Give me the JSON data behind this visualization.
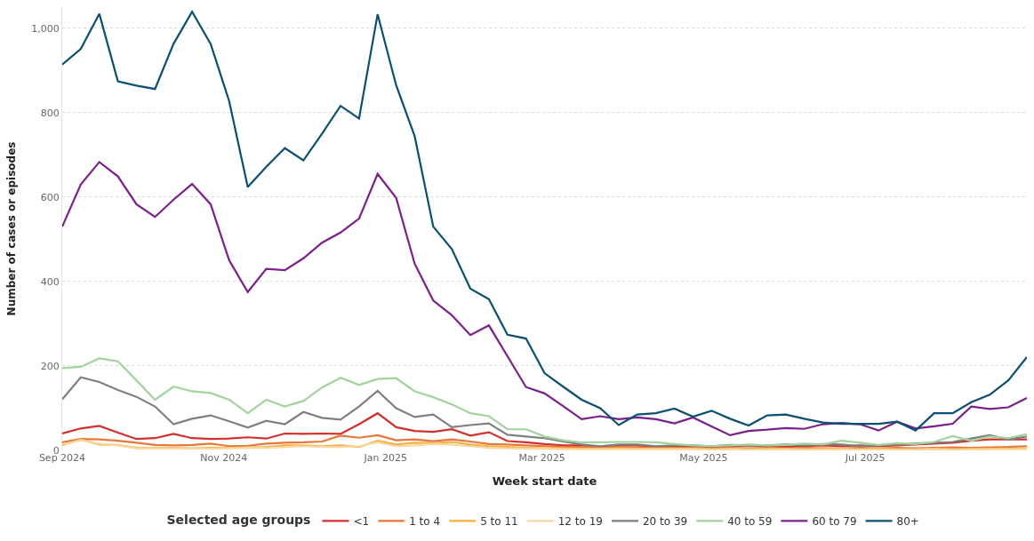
{
  "chart_data": {
    "type": "line",
    "xlabel": "Week start date",
    "ylabel": "Number of cases or episodes",
    "legend_title": "Selected age groups",
    "x": [
      "2024-09-01",
      "2024-09-08",
      "2024-09-15",
      "2024-09-22",
      "2024-09-29",
      "2024-10-06",
      "2024-10-13",
      "2024-10-20",
      "2024-10-27",
      "2024-11-03",
      "2024-11-10",
      "2024-11-17",
      "2024-11-24",
      "2024-12-01",
      "2024-12-08",
      "2024-12-15",
      "2024-12-22",
      "2024-12-29",
      "2025-01-05",
      "2025-01-12",
      "2025-01-19",
      "2025-01-26",
      "2025-02-02",
      "2025-02-09",
      "2025-02-16",
      "2025-02-23",
      "2025-03-02",
      "2025-03-09",
      "2025-03-16",
      "2025-03-23",
      "2025-03-30",
      "2025-04-06",
      "2025-04-13",
      "2025-04-20",
      "2025-04-27",
      "2025-05-04",
      "2025-05-11",
      "2025-05-18",
      "2025-05-25",
      "2025-06-01",
      "2025-06-08",
      "2025-06-15",
      "2025-06-22",
      "2025-06-29",
      "2025-07-06",
      "2025-07-13",
      "2025-07-20",
      "2025-07-27",
      "2025-08-03",
      "2025-08-10",
      "2025-08-17",
      "2025-08-24",
      "2025-08-31"
    ],
    "xlim": [
      "2024-09-01",
      "2025-08-31"
    ],
    "xticks": [
      {
        "value": "2024-09-01",
        "label": "Sep 2024"
      },
      {
        "value": "2024-11-01",
        "label": "Nov 2024"
      },
      {
        "value": "2025-01-01",
        "label": "Jan 2025"
      },
      {
        "value": "2025-03-01",
        "label": "Mar 2025"
      },
      {
        "value": "2025-05-01",
        "label": "May 2025"
      },
      {
        "value": "2025-07-01",
        "label": "Jul 2025"
      }
    ],
    "ylim": [
      0,
      1050
    ],
    "yticks": [
      0,
      200,
      400,
      600,
      800,
      {
        "value": 1000,
        "label": "1,000"
      }
    ],
    "grid": "y",
    "legend": "bottom",
    "marker": "none",
    "line_style": "solid",
    "series": [
      {
        "name": "<1",
        "color": "#d0312d",
        "values": [
          40,
          52,
          58,
          42,
          27,
          29,
          39,
          29,
          27,
          28,
          31,
          28,
          40,
          39,
          40,
          39,
          62,
          88,
          55,
          46,
          44,
          50,
          35,
          43,
          22,
          19,
          15,
          12,
          12,
          8,
          12,
          12,
          8,
          8,
          10,
          8,
          10,
          12,
          10,
          8,
          10,
          12,
          10,
          12,
          10,
          12,
          14,
          16,
          18,
          23,
          26,
          26,
          26
        ]
      },
      {
        "name": "1 to 4",
        "color": "#e8773a",
        "values": [
          19,
          27,
          26,
          23,
          18,
          13,
          12,
          13,
          16,
          10,
          11,
          16,
          18,
          19,
          21,
          35,
          30,
          36,
          24,
          26,
          22,
          26,
          21,
          15,
          14,
          12,
          10,
          8,
          8,
          7,
          8,
          7,
          6,
          6,
          6,
          5,
          6,
          5,
          6,
          5,
          6,
          5,
          5,
          6,
          5,
          6,
          5,
          6,
          7,
          6,
          7,
          8,
          10
        ]
      },
      {
        "name": "5 to 11",
        "color": "#f5b041",
        "values": [
          12,
          26,
          14,
          13,
          6,
          6,
          6,
          5,
          6,
          6,
          7,
          8,
          12,
          12,
          10,
          12,
          8,
          23,
          14,
          18,
          17,
          20,
          14,
          10,
          8,
          6,
          5,
          5,
          4,
          4,
          5,
          4,
          4,
          4,
          4,
          3,
          4,
          3,
          4,
          3,
          3,
          4,
          3,
          3,
          4,
          3,
          3,
          4,
          3,
          4,
          4,
          4,
          5
        ]
      },
      {
        "name": "12 to 19",
        "color": "#fad7a0",
        "values": [
          14,
          24,
          16,
          12,
          5,
          5,
          5,
          5,
          4,
          5,
          6,
          6,
          8,
          10,
          8,
          8,
          10,
          19,
          10,
          12,
          15,
          14,
          10,
          6,
          5,
          4,
          4,
          3,
          3,
          3,
          3,
          3,
          3,
          3,
          3,
          2,
          3,
          2,
          2,
          3,
          2,
          2,
          3,
          2,
          2,
          2,
          2,
          3,
          2,
          2,
          3,
          3,
          3
        ]
      },
      {
        "name": "20 to 39",
        "color": "#7f7f7f",
        "values": [
          121,
          173,
          162,
          143,
          127,
          104,
          62,
          75,
          83,
          69,
          54,
          70,
          62,
          91,
          77,
          73,
          104,
          141,
          100,
          79,
          85,
          55,
          60,
          64,
          37,
          33,
          29,
          21,
          14,
          10,
          14,
          14,
          10,
          12,
          12,
          10,
          13,
          12,
          12,
          14,
          12,
          15,
          14,
          10,
          12,
          14,
          16,
          18,
          20,
          28,
          36,
          26,
          33
        ]
      },
      {
        "name": "40 to 59",
        "color": "#a3d39c",
        "values": [
          195,
          198,
          218,
          211,
          166,
          120,
          151,
          140,
          136,
          120,
          88,
          120,
          104,
          117,
          149,
          172,
          155,
          169,
          171,
          140,
          126,
          109,
          88,
          81,
          50,
          50,
          33,
          24,
          19,
          19,
          20,
          20,
          19,
          15,
          12,
          10,
          12,
          14,
          12,
          13,
          16,
          14,
          23,
          18,
          13,
          17,
          15,
          20,
          34,
          23,
          33,
          29,
          39
        ]
      },
      {
        "name": "60 to 79",
        "color": "#7b1f8a",
        "values": [
          530,
          630,
          683,
          649,
          583,
          553,
          594,
          631,
          583,
          450,
          375,
          430,
          427,
          455,
          492,
          516,
          549,
          655,
          598,
          442,
          355,
          320,
          273,
          296,
          223,
          150,
          135,
          105,
          74,
          81,
          74,
          78,
          74,
          64,
          78,
          57,
          36,
          46,
          49,
          53,
          51,
          62,
          65,
          62,
          47,
          68,
          52,
          57,
          63,
          104,
          98,
          102,
          124
        ]
      },
      {
        "name": "80+",
        "color": "#0b4f71",
        "values": [
          914,
          951,
          1034,
          874,
          864,
          856,
          963,
          1039,
          963,
          827,
          624,
          672,
          716,
          687,
          750,
          816,
          786,
          1033,
          865,
          744,
          530,
          477,
          383,
          358,
          274,
          265,
          183,
          151,
          120,
          100,
          60,
          85,
          88,
          99,
          80,
          94,
          75,
          59,
          83,
          85,
          75,
          66,
          63,
          63,
          63,
          68,
          47,
          88,
          88,
          114,
          132,
          166,
          221
        ]
      }
    ]
  }
}
